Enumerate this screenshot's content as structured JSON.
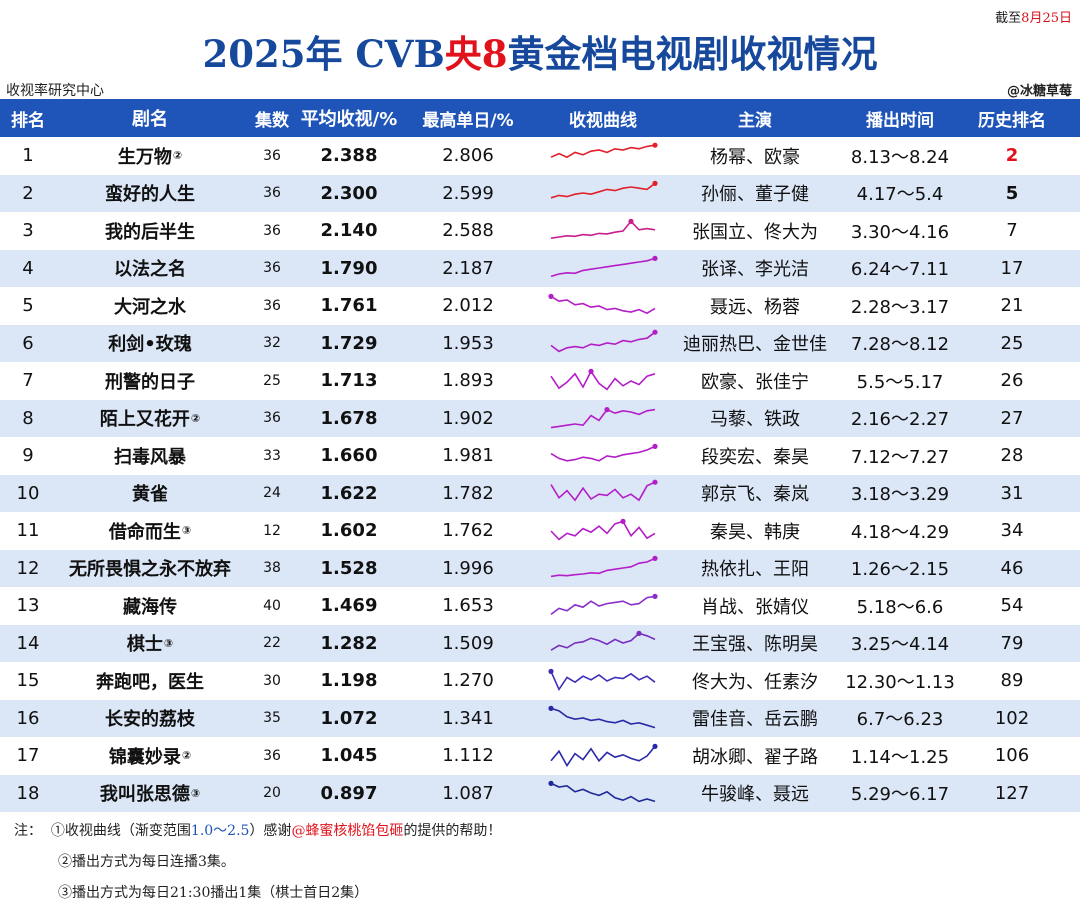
{
  "cutoff": {
    "prefix": "截至",
    "date": "8月25日"
  },
  "title": {
    "part1": "2025年 CVB",
    "part2": "央8",
    "part3": "黄金档电视剧收视情况"
  },
  "source": "收视率研究中心",
  "handle": "@冰糖草莓",
  "header": {
    "rank": "排名",
    "name": "剧名",
    "eps": "集数",
    "avg": "平均收视/%",
    "max": "最高单日/%",
    "curve": "收视曲线",
    "lead": "主演",
    "time": "播出时间",
    "hist": "历史排名"
  },
  "rows": [
    {
      "rank": "1",
      "name": "生万物",
      "sup": "②",
      "eps": "36",
      "avg": "2.388",
      "max": "2.806",
      "lead": "杨幂、欧豪",
      "time": "8.13～8.24",
      "hist": "2",
      "histStyle": "red"
    },
    {
      "rank": "2",
      "name": "蛮好的人生",
      "sup": "",
      "eps": "36",
      "avg": "2.300",
      "max": "2.599",
      "lead": "孙俪、董子健",
      "time": "4.17～5.4",
      "hist": "5",
      "histStyle": "bold"
    },
    {
      "rank": "3",
      "name": "我的后半生",
      "sup": "",
      "eps": "36",
      "avg": "2.140",
      "max": "2.588",
      "lead": "张国立、佟大为",
      "time": "3.30～4.16",
      "hist": "7",
      "histStyle": ""
    },
    {
      "rank": "4",
      "name": "以法之名",
      "sup": "",
      "eps": "36",
      "avg": "1.790",
      "max": "2.187",
      "lead": "张译、李光洁",
      "time": "6.24～7.11",
      "hist": "17",
      "histStyle": ""
    },
    {
      "rank": "5",
      "name": "大河之水",
      "sup": "",
      "eps": "36",
      "avg": "1.761",
      "max": "2.012",
      "lead": "聂远、杨蓉",
      "time": "2.28～3.17",
      "hist": "21",
      "histStyle": ""
    },
    {
      "rank": "6",
      "name": "利剑•玫瑰",
      "sup": "",
      "eps": "32",
      "avg": "1.729",
      "max": "1.953",
      "lead": "迪丽热巴、金世佳",
      "time": "7.28～8.12",
      "hist": "25",
      "histStyle": ""
    },
    {
      "rank": "7",
      "name": "刑警的日子",
      "sup": "",
      "eps": "25",
      "avg": "1.713",
      "max": "1.893",
      "lead": "欧豪、张佳宁",
      "time": "5.5～5.17",
      "hist": "26",
      "histStyle": ""
    },
    {
      "rank": "8",
      "name": "陌上又花开",
      "sup": "②",
      "eps": "36",
      "avg": "1.678",
      "max": "1.902",
      "lead": "马藜、铁政",
      "time": "2.16～2.27",
      "hist": "27",
      "histStyle": ""
    },
    {
      "rank": "9",
      "name": "扫毒风暴",
      "sup": "",
      "eps": "33",
      "avg": "1.660",
      "max": "1.981",
      "lead": "段奕宏、秦昊",
      "time": "7.12～7.27",
      "hist": "28",
      "histStyle": ""
    },
    {
      "rank": "10",
      "name": "黄雀",
      "sup": "",
      "eps": "24",
      "avg": "1.622",
      "max": "1.782",
      "lead": "郭京飞、秦岚",
      "time": "3.18～3.29",
      "hist": "31",
      "histStyle": ""
    },
    {
      "rank": "11",
      "name": "借命而生",
      "sup": "③",
      "eps": "12",
      "avg": "1.602",
      "max": "1.762",
      "lead": "秦昊、韩庚",
      "time": "4.18～4.29",
      "hist": "34",
      "histStyle": ""
    },
    {
      "rank": "12",
      "name": "无所畏惧之永不放弃",
      "sup": "",
      "eps": "38",
      "avg": "1.528",
      "max": "1.996",
      "lead": "热依扎、王阳",
      "time": "1.26～2.15",
      "hist": "46",
      "histStyle": ""
    },
    {
      "rank": "13",
      "name": "藏海传",
      "sup": "",
      "eps": "40",
      "avg": "1.469",
      "max": "1.653",
      "lead": "肖战、张婧仪",
      "time": "5.18～6.6",
      "hist": "54",
      "histStyle": ""
    },
    {
      "rank": "14",
      "name": "棋士",
      "sup": "③",
      "eps": "22",
      "avg": "1.282",
      "max": "1.509",
      "lead": "王宝强、陈明昊",
      "time": "3.25～4.14",
      "hist": "79",
      "histStyle": ""
    },
    {
      "rank": "15",
      "name": "奔跑吧，医生",
      "sup": "",
      "eps": "30",
      "avg": "1.198",
      "max": "1.270",
      "lead": "佟大为、任素汐",
      "time": "12.30～1.13",
      "hist": "89",
      "histStyle": ""
    },
    {
      "rank": "16",
      "name": "长安的荔枝",
      "sup": "",
      "eps": "35",
      "avg": "1.072",
      "max": "1.341",
      "lead": "雷佳音、岳云鹏",
      "time": "6.7～6.23",
      "hist": "102",
      "histStyle": ""
    },
    {
      "rank": "17",
      "name": "锦囊妙录",
      "sup": "②",
      "eps": "36",
      "avg": "1.045",
      "max": "1.112",
      "lead": "胡冰卿、翟子路",
      "time": "1.14～1.25",
      "hist": "106",
      "histStyle": ""
    },
    {
      "rank": "18",
      "name": "我叫张思德",
      "sup": "③",
      "eps": "20",
      "avg": "0.897",
      "max": "1.087",
      "lead": "牛骏峰、聂远",
      "time": "5.29～6.17",
      "hist": "127",
      "histStyle": ""
    }
  ],
  "curves": [
    {
      "color": "#e0202a",
      "points": [
        0.55,
        0.4,
        0.55,
        0.35,
        0.45,
        0.3,
        0.25,
        0.35,
        0.2,
        0.25,
        0.15,
        0.2,
        0.1,
        0.05
      ]
    },
    {
      "color": "#e0202a",
      "points": [
        0.7,
        0.6,
        0.65,
        0.55,
        0.5,
        0.55,
        0.45,
        0.35,
        0.4,
        0.3,
        0.25,
        0.3,
        0.35,
        0.1
      ]
    },
    {
      "color": "#c81e8c",
      "points": [
        0.8,
        0.75,
        0.7,
        0.72,
        0.65,
        0.68,
        0.6,
        0.62,
        0.55,
        0.5,
        0.1,
        0.45,
        0.4,
        0.45
      ]
    },
    {
      "color": "#b41ec8",
      "points": [
        0.85,
        0.75,
        0.7,
        0.72,
        0.6,
        0.55,
        0.5,
        0.45,
        0.4,
        0.35,
        0.3,
        0.25,
        0.2,
        0.1
      ]
    },
    {
      "color": "#b41ec8",
      "points": [
        0.1,
        0.3,
        0.25,
        0.45,
        0.4,
        0.55,
        0.5,
        0.65,
        0.6,
        0.7,
        0.75,
        0.65,
        0.8,
        0.6
      ]
    },
    {
      "color": "#b41ec8",
      "points": [
        0.6,
        0.85,
        0.7,
        0.65,
        0.7,
        0.55,
        0.6,
        0.5,
        0.55,
        0.4,
        0.45,
        0.35,
        0.3,
        0.05
      ]
    },
    {
      "color": "#b41ec8",
      "points": [
        0.3,
        0.8,
        0.55,
        0.2,
        0.75,
        0.1,
        0.6,
        0.85,
        0.4,
        0.7,
        0.5,
        0.65,
        0.3,
        0.2
      ]
    },
    {
      "color": "#b41ec8",
      "points": [
        0.9,
        0.85,
        0.8,
        0.75,
        0.8,
        0.4,
        0.6,
        0.15,
        0.3,
        0.2,
        0.25,
        0.35,
        0.2,
        0.15
      ]
    },
    {
      "color": "#b41ec8",
      "points": [
        0.4,
        0.6,
        0.7,
        0.65,
        0.55,
        0.6,
        0.7,
        0.5,
        0.55,
        0.45,
        0.4,
        0.35,
        0.25,
        0.1
      ]
    },
    {
      "color": "#b41ec8",
      "points": [
        0.15,
        0.7,
        0.4,
        0.8,
        0.3,
        0.75,
        0.55,
        0.6,
        0.35,
        0.7,
        0.55,
        0.8,
        0.2,
        0.05
      ]
    },
    {
      "color": "#b41ec8",
      "points": [
        0.5,
        0.85,
        0.6,
        0.7,
        0.4,
        0.55,
        0.3,
        0.6,
        0.2,
        0.1,
        0.7,
        0.35,
        0.8,
        0.6
      ]
    },
    {
      "color": "#b41ec8",
      "points": [
        0.85,
        0.8,
        0.82,
        0.78,
        0.75,
        0.7,
        0.72,
        0.6,
        0.55,
        0.5,
        0.45,
        0.3,
        0.25,
        0.1
      ]
    },
    {
      "color": "#8a2ec8",
      "points": [
        0.85,
        0.6,
        0.7,
        0.45,
        0.55,
        0.3,
        0.5,
        0.4,
        0.35,
        0.3,
        0.45,
        0.4,
        0.15,
        0.1
      ]
    },
    {
      "color": "#7a2ec0",
      "points": [
        0.8,
        0.6,
        0.7,
        0.5,
        0.45,
        0.3,
        0.4,
        0.55,
        0.35,
        0.5,
        0.4,
        0.1,
        0.2,
        0.35
      ]
    },
    {
      "color": "#3d2eb8",
      "points": [
        0.1,
        0.85,
        0.35,
        0.55,
        0.3,
        0.45,
        0.25,
        0.5,
        0.35,
        0.4,
        0.2,
        0.45,
        0.3,
        0.55
      ]
    },
    {
      "color": "#2a2aa8",
      "points": [
        0.1,
        0.2,
        0.45,
        0.55,
        0.5,
        0.6,
        0.55,
        0.65,
        0.7,
        0.6,
        0.75,
        0.7,
        0.8,
        0.9
      ]
    },
    {
      "color": "#2a2aa8",
      "points": [
        0.7,
        0.3,
        0.9,
        0.4,
        0.65,
        0.2,
        0.7,
        0.35,
        0.55,
        0.45,
        0.6,
        0.7,
        0.5,
        0.1
      ]
    },
    {
      "color": "#1e2a98",
      "points": [
        0.1,
        0.25,
        0.2,
        0.45,
        0.35,
        0.5,
        0.6,
        0.45,
        0.7,
        0.8,
        0.65,
        0.85,
        0.75,
        0.85
      ]
    }
  ],
  "notes": {
    "label": "注：",
    "n1_pre": "①收视曲线（渐变范围",
    "n1_range": "1.0～2.5",
    "n1_mid": "）感谢",
    "n1_credit": "@蜂蜜核桃馅包砸",
    "n1_post": "的提供的帮助！",
    "n2": "②播出方式为每日连播3集。",
    "n3": "③播出方式为每日21:30播出1集（棋士首日2集）"
  }
}
